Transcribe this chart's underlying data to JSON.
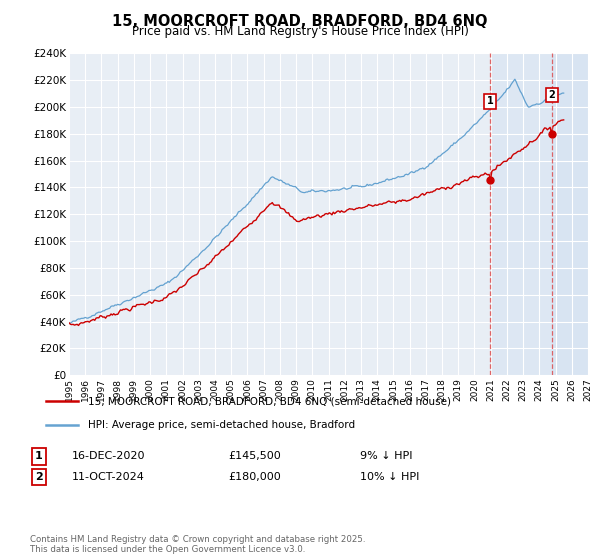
{
  "title": "15, MOORCROFT ROAD, BRADFORD, BD4 6NQ",
  "subtitle": "Price paid vs. HM Land Registry's House Price Index (HPI)",
  "ylim": [
    0,
    240000
  ],
  "yticks": [
    0,
    20000,
    40000,
    60000,
    80000,
    100000,
    120000,
    140000,
    160000,
    180000,
    200000,
    220000,
    240000
  ],
  "ytick_labels": [
    "£0",
    "£20K",
    "£40K",
    "£60K",
    "£80K",
    "£100K",
    "£120K",
    "£140K",
    "£160K",
    "£180K",
    "£200K",
    "£220K",
    "£240K"
  ],
  "background_color": "#ffffff",
  "plot_bg_color": "#e8eef5",
  "grid_color": "#ffffff",
  "line_color_red": "#cc0000",
  "line_color_blue": "#5599cc",
  "fill_color_blue": "#c5d9f0",
  "marker1_x": 2020.96,
  "marker1_y": 145500,
  "marker2_x": 2024.78,
  "marker2_y": 180000,
  "vline1_x": 2020.96,
  "vline2_x": 2024.78,
  "legend_line1": "15, MOORCROFT ROAD, BRADFORD, BD4 6NQ (semi-detached house)",
  "legend_line2": "HPI: Average price, semi-detached house, Bradford",
  "footnote": "Contains HM Land Registry data © Crown copyright and database right 2025.\nThis data is licensed under the Open Government Licence v3.0.",
  "xmin": 1995,
  "xmax": 2027,
  "xticks": [
    1995,
    1996,
    1997,
    1998,
    1999,
    2000,
    2001,
    2002,
    2003,
    2004,
    2005,
    2006,
    2007,
    2008,
    2009,
    2010,
    2011,
    2012,
    2013,
    2014,
    2015,
    2016,
    2017,
    2018,
    2019,
    2020,
    2021,
    2022,
    2023,
    2024,
    2025,
    2026,
    2027
  ]
}
